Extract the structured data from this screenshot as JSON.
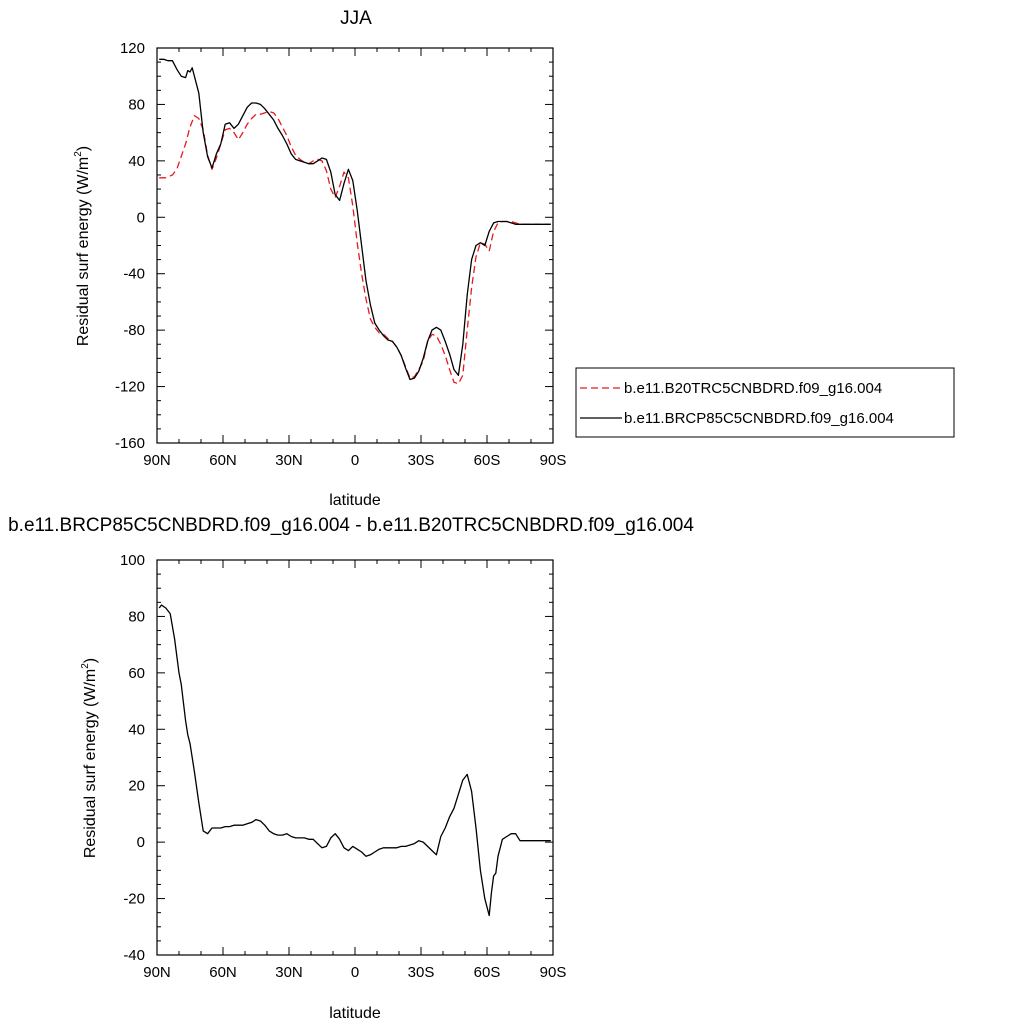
{
  "chart_data": [
    {
      "type": "line",
      "title": "JJA",
      "xlabel": "latitude",
      "ylabel": "Residual surf energy (W/m",
      "ylabel_sup": "2",
      "ylabel_close": ")",
      "xlim": [
        90,
        -90
      ],
      "ylim": [
        -160,
        120
      ],
      "x_ticks": [
        {
          "value": 90,
          "label": "90N"
        },
        {
          "value": 60,
          "label": "60N"
        },
        {
          "value": 30,
          "label": "30N"
        },
        {
          "value": 0,
          "label": "0"
        },
        {
          "value": -30,
          "label": "30S"
        },
        {
          "value": -60,
          "label": "60S"
        },
        {
          "value": -90,
          "label": "90S"
        }
      ],
      "y_ticks": [
        {
          "value": 120,
          "label": "120"
        },
        {
          "value": 80,
          "label": "80"
        },
        {
          "value": 40,
          "label": "40"
        },
        {
          "value": 0,
          "label": "0"
        },
        {
          "value": -40,
          "label": "-40"
        },
        {
          "value": -80,
          "label": "-80"
        },
        {
          "value": -120,
          "label": "-120"
        },
        {
          "value": -160,
          "label": "-160"
        }
      ],
      "legend_position": "right",
      "series": [
        {
          "name": "b.e11.B20TRC5CNBDRD.f09_g16.004",
          "color": "#e8191c",
          "dash": "dashed",
          "x": [
            89,
            86,
            83,
            81,
            79,
            77,
            75,
            73,
            71,
            69,
            67,
            65,
            63,
            61,
            59,
            57,
            55,
            53,
            51,
            49,
            47,
            45,
            43,
            41,
            39,
            37,
            35,
            33,
            31,
            29,
            27,
            25,
            23,
            21,
            19,
            17,
            15,
            13,
            11,
            9,
            7,
            5,
            3,
            1,
            -1,
            -3,
            -5,
            -7,
            -9,
            -11,
            -13,
            -15,
            -17,
            -19,
            -21,
            -23,
            -25,
            -27,
            -29,
            -31,
            -33,
            -35,
            -37,
            -39,
            -41,
            -43,
            -45,
            -47,
            -49,
            -51,
            -53,
            -55,
            -57,
            -59,
            -61,
            -63,
            -65,
            -67,
            -69,
            -71,
            -73,
            -75,
            -77,
            -79,
            -81,
            -83,
            -85,
            -87,
            -89
          ],
          "y": [
            28,
            28,
            30,
            34,
            43,
            52,
            64,
            72,
            70,
            62,
            44,
            34,
            42,
            52,
            62,
            63,
            60,
            55,
            60,
            66,
            70,
            73,
            73,
            74,
            75,
            74,
            70,
            64,
            58,
            50,
            44,
            41,
            39,
            38,
            40,
            41,
            40,
            33,
            20,
            14,
            22,
            32,
            28,
            8,
            -18,
            -40,
            -58,
            -72,
            -78,
            -82,
            -83,
            -86,
            -88,
            -92,
            -98,
            -106,
            -114,
            -113,
            -108,
            -102,
            -88,
            -83,
            -84,
            -90,
            -98,
            -108,
            -117,
            -118,
            -112,
            -80,
            -50,
            -28,
            -18,
            -19,
            -24,
            -10,
            -4,
            -3,
            -3,
            -3,
            -4,
            -5,
            -5,
            -5,
            -5,
            -5,
            -5,
            -5,
            -5
          ]
        },
        {
          "name": "b.e11.BRCP85C5CNBDRD.f09_g16.004",
          "color": "#000000",
          "dash": "solid",
          "x": [
            89,
            87,
            85,
            83,
            81,
            79,
            77,
            76,
            75,
            74,
            73,
            71,
            69,
            67,
            65,
            63,
            61,
            59,
            57,
            55,
            53,
            51,
            49,
            47,
            45,
            43,
            41,
            39,
            37,
            35,
            33,
            31,
            29,
            27,
            25,
            23,
            21,
            19,
            17,
            15,
            13,
            11,
            9,
            7,
            5,
            3,
            1,
            -1,
            -3,
            -5,
            -7,
            -9,
            -11,
            -13,
            -15,
            -17,
            -19,
            -21,
            -23,
            -25,
            -27,
            -29,
            -31,
            -33,
            -35,
            -37,
            -39,
            -41,
            -43,
            -45,
            -47,
            -49,
            -51,
            -53,
            -55,
            -57,
            -59,
            -61,
            -63,
            -65,
            -67,
            -69,
            -71,
            -73,
            -75,
            -77,
            -79,
            -81,
            -83,
            -85,
            -87,
            -89
          ],
          "y": [
            112,
            112,
            111,
            111,
            105,
            100,
            99,
            104,
            103,
            106,
            100,
            88,
            60,
            43,
            35,
            45,
            52,
            66,
            67,
            63,
            66,
            72,
            78,
            81,
            81,
            80,
            77,
            73,
            69,
            63,
            58,
            52,
            45,
            41,
            40,
            39,
            38,
            38,
            40,
            42,
            41,
            32,
            16,
            12,
            24,
            34,
            26,
            5,
            -20,
            -45,
            -62,
            -75,
            -80,
            -84,
            -87,
            -88,
            -92,
            -98,
            -107,
            -115,
            -114,
            -109,
            -100,
            -88,
            -80,
            -78,
            -80,
            -88,
            -97,
            -108,
            -112,
            -90,
            -55,
            -30,
            -20,
            -18,
            -20,
            -10,
            -4,
            -3,
            -3,
            -3,
            -4,
            -5,
            -5,
            -5,
            -5,
            -5,
            -5,
            -5,
            -5,
            -5
          ]
        }
      ]
    },
    {
      "type": "line",
      "title": "b.e11.BRCP85C5CNBDRD.f09_g16.004 - b.e11.B20TRC5CNBDRD.f09_g16.004",
      "xlabel": "latitude",
      "ylabel": "Residual surf energy (W/m",
      "ylabel_sup": "2",
      "ylabel_close": ")",
      "xlim": [
        90,
        -90
      ],
      "ylim": [
        -40,
        100
      ],
      "x_ticks": [
        {
          "value": 90,
          "label": "90N"
        },
        {
          "value": 60,
          "label": "60N"
        },
        {
          "value": 30,
          "label": "30N"
        },
        {
          "value": 0,
          "label": "0"
        },
        {
          "value": -30,
          "label": "30S"
        },
        {
          "value": -60,
          "label": "60S"
        },
        {
          "value": -90,
          "label": "90S"
        }
      ],
      "y_ticks": [
        {
          "value": 100,
          "label": "100"
        },
        {
          "value": 80,
          "label": "80"
        },
        {
          "value": 60,
          "label": "60"
        },
        {
          "value": 40,
          "label": "40"
        },
        {
          "value": 20,
          "label": "20"
        },
        {
          "value": 0,
          "label": "0"
        },
        {
          "value": -20,
          "label": "-20"
        },
        {
          "value": -40,
          "label": "-40"
        }
      ],
      "series": [
        {
          "name": "",
          "color": "#000000",
          "dash": "solid",
          "x": [
            89,
            88,
            86,
            84,
            82,
            80,
            79,
            77,
            76,
            75,
            73,
            71,
            69,
            67,
            65,
            63,
            61,
            59,
            57,
            55,
            53,
            51,
            49,
            47,
            45,
            43,
            41,
            39,
            37,
            35,
            33,
            31,
            29,
            27,
            25,
            23,
            21,
            19,
            17,
            15,
            13,
            11,
            9,
            7,
            5,
            3,
            1,
            -1,
            -3,
            -5,
            -7,
            -9,
            -11,
            -13,
            -15,
            -17,
            -19,
            -21,
            -23,
            -25,
            -27,
            -29,
            -31,
            -33,
            -35,
            -37,
            -39,
            -41,
            -43,
            -45,
            -47,
            -49,
            -51,
            -53,
            -55,
            -57,
            -59,
            -61,
            -62,
            -63,
            -64,
            -65,
            -67,
            -69,
            -71,
            -73,
            -75,
            -77,
            -79,
            -81,
            -83,
            -85,
            -87,
            -89
          ],
          "y": [
            83,
            84,
            83,
            81,
            72,
            60,
            56,
            43,
            38,
            35,
            25,
            14,
            4,
            3,
            5,
            5,
            5,
            5.5,
            5.5,
            6,
            6,
            6,
            6.5,
            7,
            8,
            7.5,
            6,
            4,
            3,
            2.5,
            2.5,
            3,
            2,
            1.5,
            1.5,
            1.5,
            1,
            1,
            -0.5,
            -2,
            -1.5,
            1.5,
            3,
            1,
            -2,
            -3,
            -1.5,
            -2.5,
            -3.5,
            -5,
            -4.5,
            -3.5,
            -2.5,
            -2,
            -2,
            -2,
            -2,
            -1.5,
            -1.5,
            -1,
            -0.5,
            0.5,
            0,
            -1.5,
            -3,
            -4.5,
            2,
            5,
            9,
            12,
            17,
            22,
            24,
            18,
            5,
            -10,
            -20,
            -26,
            -18,
            -12,
            -11,
            -5,
            1,
            2,
            3,
            3,
            0.5,
            0.5,
            0.5,
            0.5,
            0.5,
            0.5,
            0.5,
            0.5
          ]
        }
      ]
    }
  ]
}
